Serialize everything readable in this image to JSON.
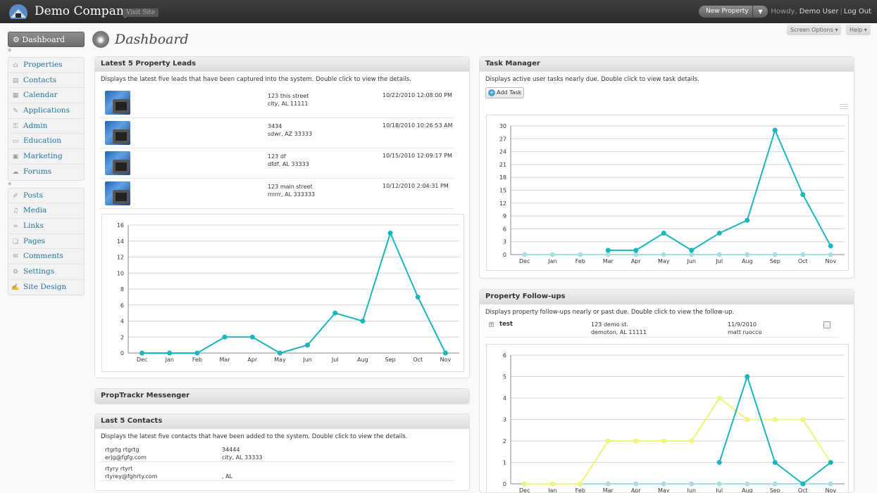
{
  "header": {
    "site_title": "Demo Company",
    "visit_site": "Visit Site",
    "new_button": "New Property",
    "howdy_prefix": "Howdy,",
    "user": "Demo User",
    "logout": "Log Out"
  },
  "page": {
    "title": "Dashboard",
    "screen_options": "Screen Options",
    "help": "Help"
  },
  "sidebar": {
    "dashboard": "Dashboard",
    "group1": [
      {
        "label": "Properties",
        "icon": "properties-icon",
        "glyph": "⌂"
      },
      {
        "label": "Contacts",
        "icon": "contacts-icon",
        "glyph": "▤"
      },
      {
        "label": "Calendar",
        "icon": "calendar-icon",
        "glyph": "▦"
      },
      {
        "label": "Applications",
        "icon": "applications-icon",
        "glyph": "✎"
      },
      {
        "label": "Admin",
        "icon": "admin-icon",
        "glyph": "⚿"
      },
      {
        "label": "Education",
        "icon": "education-icon",
        "glyph": "▭"
      },
      {
        "label": "Marketing",
        "icon": "marketing-icon",
        "glyph": "▣"
      },
      {
        "label": "Forums",
        "icon": "forums-icon",
        "glyph": "☁"
      }
    ],
    "group2": [
      {
        "label": "Posts",
        "icon": "posts-icon",
        "glyph": "✐"
      },
      {
        "label": "Media",
        "icon": "media-icon",
        "glyph": "♫"
      },
      {
        "label": "Links",
        "icon": "links-icon",
        "glyph": "∞"
      },
      {
        "label": "Pages",
        "icon": "pages-icon",
        "glyph": "❏"
      },
      {
        "label": "Comments",
        "icon": "comments-icon",
        "glyph": "✉"
      },
      {
        "label": "Settings",
        "icon": "settings-icon",
        "glyph": "⚙"
      },
      {
        "label": "Site Design",
        "icon": "site-design-icon",
        "glyph": "✍"
      }
    ]
  },
  "leads": {
    "title": "Latest 5 Property Leads",
    "description": "Displays the latest five leads that have been captured into the system. Double click to view the details.",
    "rows": [
      {
        "line1": "123 this street",
        "line2": "city, AL 11111",
        "date": "10/22/2010 12:08:00 PM"
      },
      {
        "line1": "3434",
        "line2": "sdwr, AZ 33333",
        "date": "10/18/2010 10:26:53 AM"
      },
      {
        "line1": "123 df",
        "line2": "dfdf, AL 33333",
        "date": "10/15/2010 12:09:17 PM"
      },
      {
        "line1": "123 main street",
        "line2": "rrrrrr, AL 333333",
        "date": "10/12/2010 2:04:31 PM"
      }
    ]
  },
  "messenger": {
    "title": "PropTrackr Messenger"
  },
  "contacts": {
    "title": "Last 5 Contacts",
    "description": "Displays the latest five contacts that have been added to the system. Double click to view the details.",
    "rows": [
      {
        "name": "rtgrtg rtgrtg",
        "email": "erjg@fgfg.com",
        "phone": "34444",
        "city": "city, AL 33333"
      },
      {
        "name": "rtyry rtyrt",
        "email": "rtyrey@fghrty.com",
        "phone": "",
        "city": ", AL"
      }
    ]
  },
  "tasks": {
    "title": "Task Manager",
    "description": "Displays active user tasks nearly due. Double click to view task details.",
    "add_task": "Add Task"
  },
  "followups": {
    "title": "Property Follow-ups",
    "description": "Displays property follow-ups nearly or past due. Double click to view the follow-up.",
    "rows": [
      {
        "title": "test",
        "addr1": "123 demo st.",
        "addr2": "demoton, AL 11111",
        "date": "11/9/2010",
        "person": "matt ruocco"
      }
    ]
  },
  "colors": {
    "teal": "#1ab6bd",
    "light": "#a8dde6",
    "yellow": "#eef57a"
  },
  "chart_data": [
    {
      "type": "line",
      "x": [
        "Dec",
        "Jan",
        "Feb",
        "Mar",
        "Apr",
        "May",
        "Jun",
        "Jul",
        "Aug",
        "Sep",
        "Oct",
        "Nov"
      ],
      "ylim": [
        0,
        16
      ],
      "yticks": [
        0,
        2,
        4,
        6,
        8,
        10,
        12,
        14,
        16
      ],
      "grid": true,
      "series": [
        {
          "color": "#1ab6bd",
          "values": [
            0,
            0,
            0,
            2,
            2,
            0,
            1,
            5,
            4,
            15,
            7,
            0
          ]
        }
      ]
    },
    {
      "type": "line",
      "x": [
        "Dec",
        "Jan",
        "Feb",
        "Mar",
        "Apr",
        "May",
        "Jun",
        "Jul",
        "Aug",
        "Sep",
        "Oct",
        "Nov"
      ],
      "ylim": [
        0,
        30
      ],
      "yticks": [
        0,
        3,
        6,
        9,
        12,
        15,
        18,
        21,
        24,
        27,
        30
      ],
      "grid": true,
      "series": [
        {
          "color": "#a8dde6",
          "values": [
            0,
            0,
            0,
            0,
            0,
            0,
            0,
            0,
            0,
            0,
            0,
            0
          ]
        },
        {
          "color": "#1ab6bd",
          "values": [
            null,
            null,
            null,
            1,
            1,
            5,
            1,
            5,
            8,
            29,
            14,
            2
          ]
        }
      ]
    },
    {
      "type": "line",
      "x": [
        "Dec",
        "Jan",
        "Feb",
        "Mar",
        "Apr",
        "May",
        "Jun",
        "Jul",
        "Aug",
        "Sep",
        "Oct",
        "Nov"
      ],
      "ylim": [
        0,
        6
      ],
      "yticks": [
        0,
        1,
        2,
        3,
        4,
        5,
        6
      ],
      "grid": true,
      "series": [
        {
          "color": "#a8dde6",
          "values": [
            0,
            0,
            0,
            0,
            0,
            0,
            0,
            0,
            0,
            0,
            0,
            0
          ]
        },
        {
          "color": "#eef57a",
          "values": [
            0,
            0,
            0,
            2,
            2,
            2,
            2,
            4,
            3,
            3,
            3,
            1
          ]
        },
        {
          "color": "#1ab6bd",
          "values": [
            null,
            null,
            null,
            null,
            null,
            null,
            null,
            1,
            5,
            1,
            0,
            1
          ]
        }
      ]
    }
  ]
}
